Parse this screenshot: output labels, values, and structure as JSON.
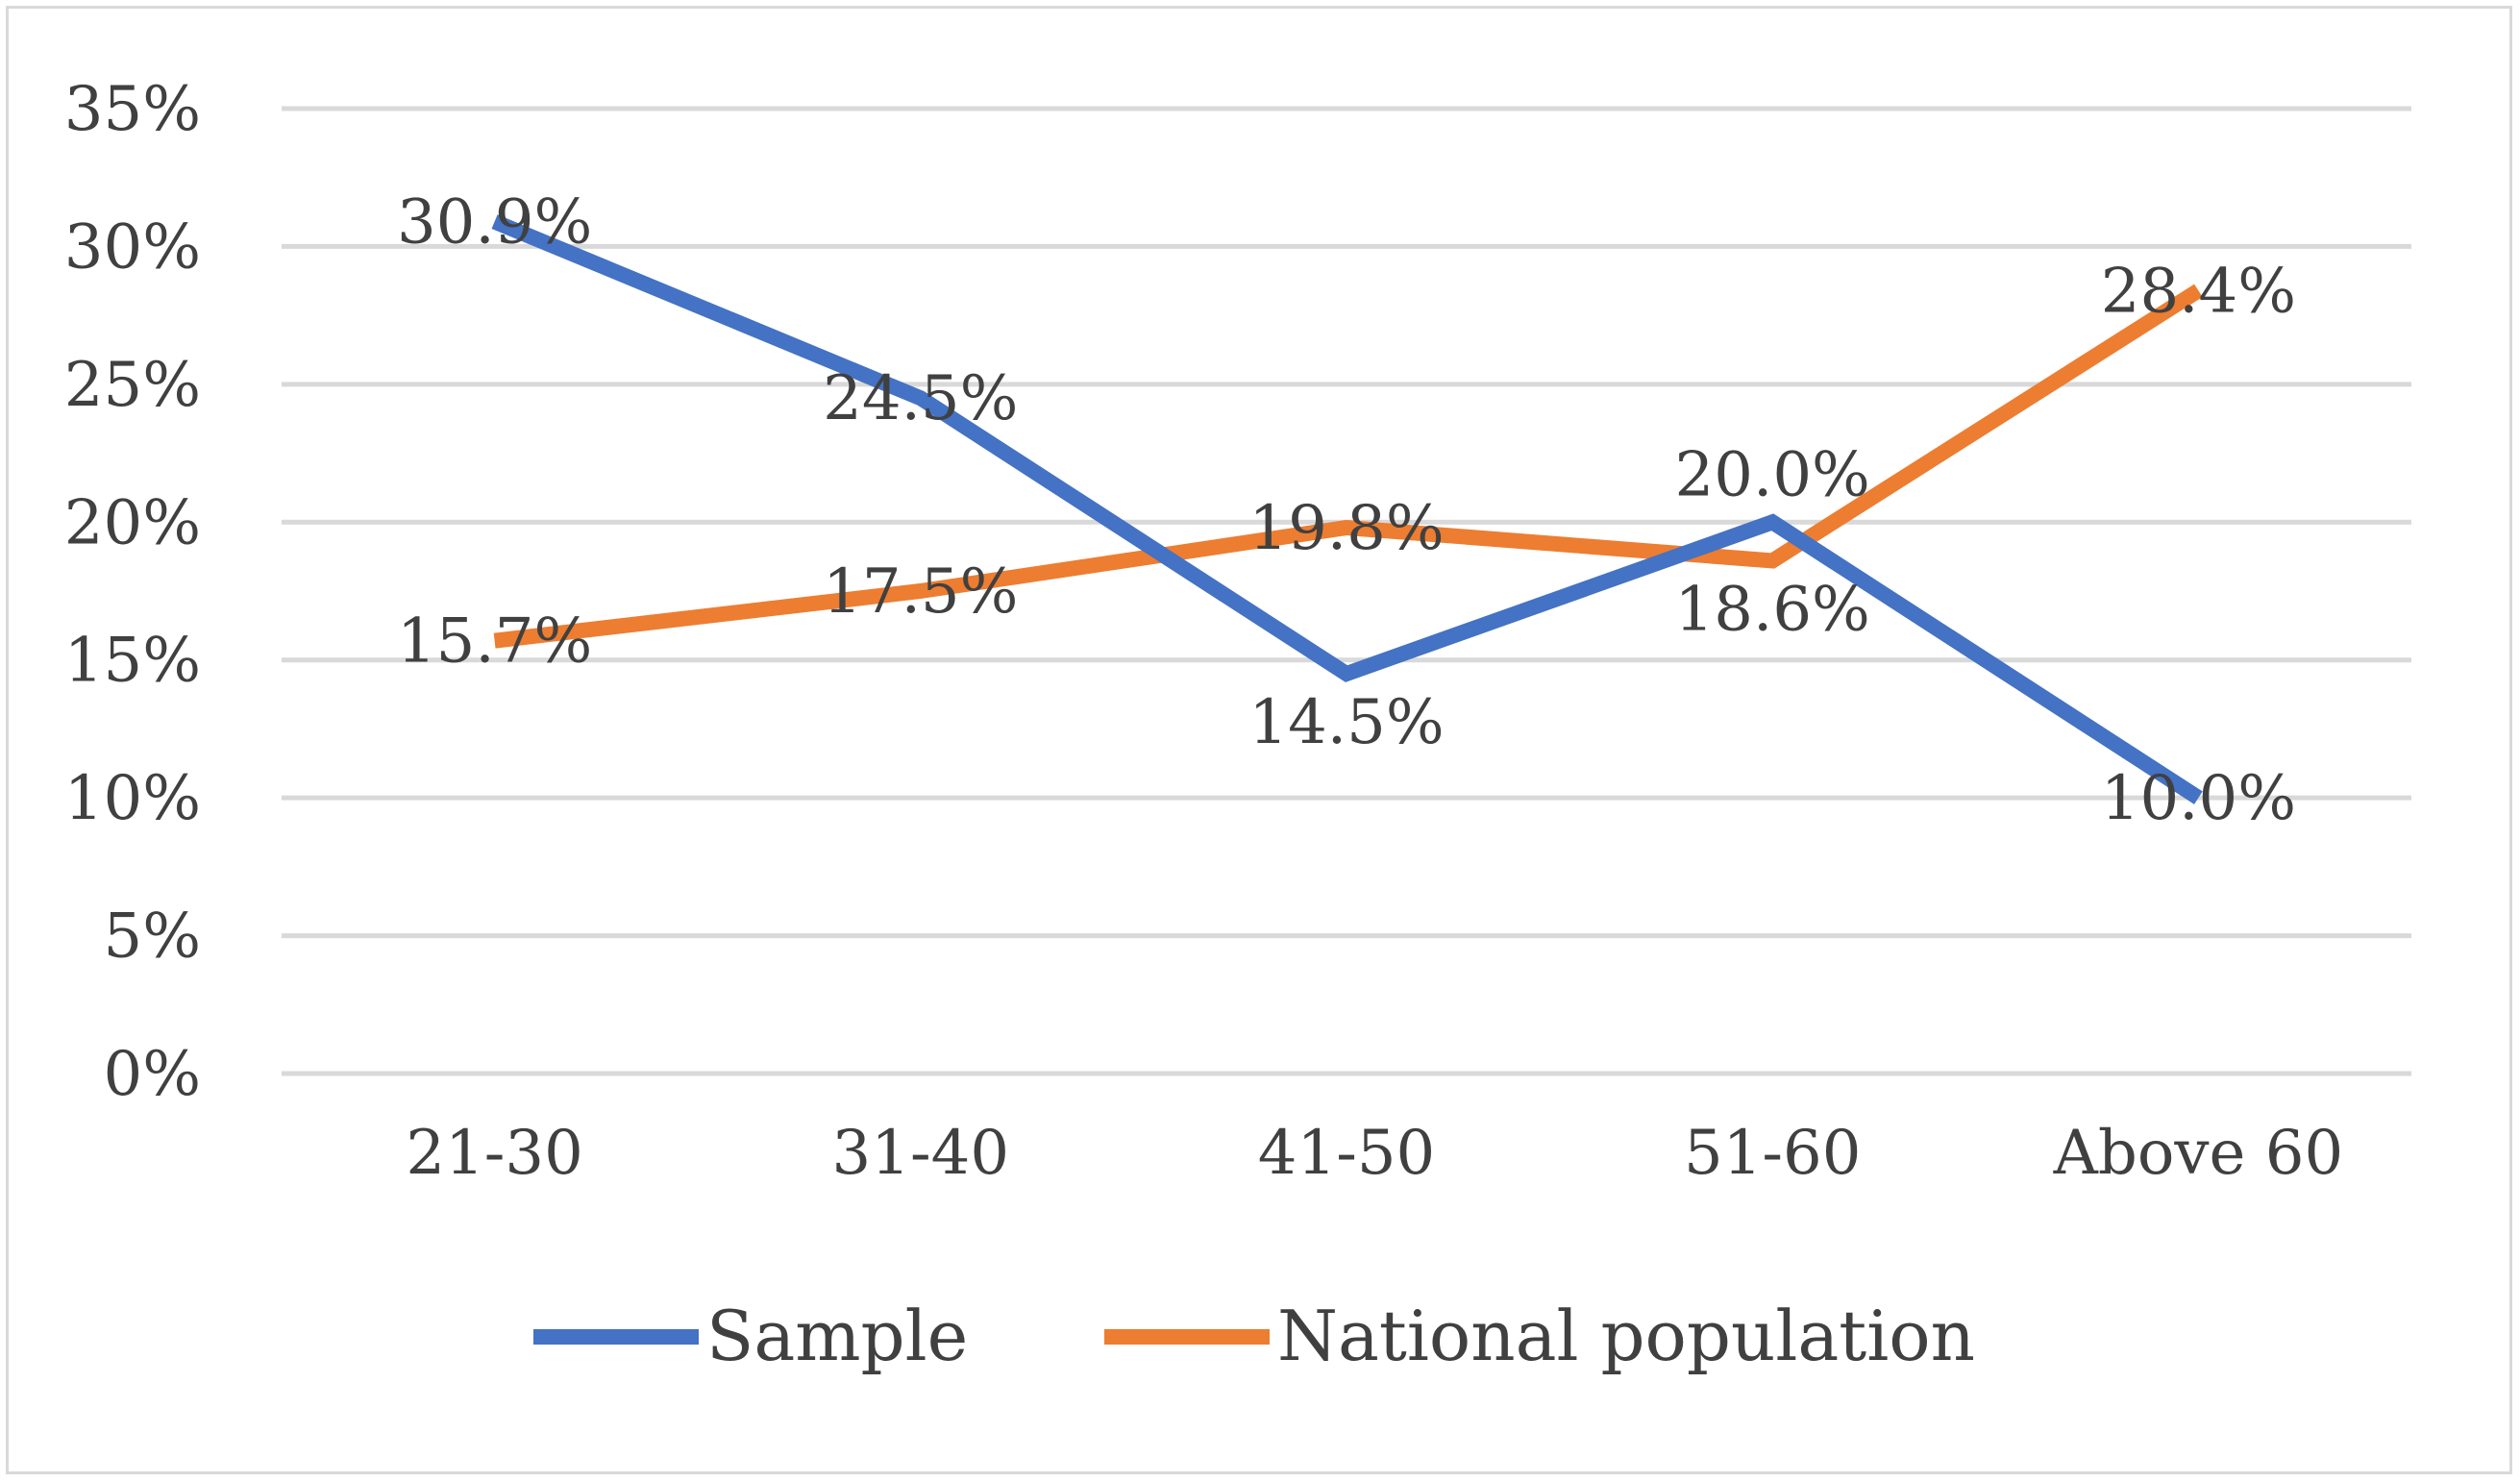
{
  "chart_data": {
    "type": "line",
    "title": "",
    "xlabel": "",
    "ylabel": "",
    "categories": [
      "21-30",
      "31-40",
      "41-50",
      "51-60",
      "Above 60"
    ],
    "ylim": [
      0,
      35
    ],
    "yticks": [
      0,
      5,
      10,
      15,
      20,
      25,
      30,
      35
    ],
    "ytick_labels": [
      "0%",
      "5%",
      "10%",
      "15%",
      "20%",
      "25%",
      "30%",
      "35%"
    ],
    "grid": true,
    "legend_position": "bottom",
    "series": [
      {
        "name": "Sample",
        "color": "#4472c4",
        "values": [
          30.9,
          24.5,
          14.5,
          20.0,
          10.0
        ],
        "labels": [
          "30.9%",
          "24.5%",
          "14.5%",
          "20.0%",
          "10.0%"
        ],
        "label_positions": [
          "center",
          "center",
          "below",
          "above",
          "center"
        ]
      },
      {
        "name": "National population",
        "color": "#ed7d31",
        "values": [
          15.7,
          17.5,
          19.8,
          18.6,
          28.4
        ],
        "labels": [
          "15.7%",
          "17.5%",
          "19.8%",
          "18.6%",
          "28.4%"
        ],
        "label_positions": [
          "center",
          "center",
          "center",
          "below",
          "center"
        ]
      }
    ]
  }
}
